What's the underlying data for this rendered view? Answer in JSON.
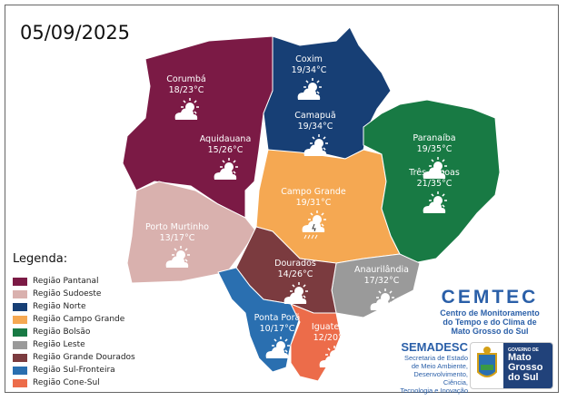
{
  "date": "05/09/2025",
  "regions": [
    {
      "name": "Região Pantanal",
      "color": "#7b1a45"
    },
    {
      "name": "Região Sudoeste",
      "color": "#d9b1ae"
    },
    {
      "name": "Região Norte",
      "color": "#173f75"
    },
    {
      "name": "Região Campo Grande",
      "color": "#f5a852"
    },
    {
      "name": "Região Bolsão",
      "color": "#187a44"
    },
    {
      "name": "Região Leste",
      "color": "#9a9a9a"
    },
    {
      "name": "Região Grande Dourados",
      "color": "#7b3b3f"
    },
    {
      "name": "Região Sul-Fronteira",
      "color": "#2a6fb0"
    },
    {
      "name": "Região Cone-Sul",
      "color": "#ec6c4a"
    }
  ],
  "legend_title": "Legenda:",
  "cities": [
    {
      "name": "Corumbá",
      "temp": "18/23°C",
      "icon": "partly-cloudy-icon"
    },
    {
      "name": "Aquidauana",
      "temp": "15/26°C",
      "icon": "partly-cloudy-icon"
    },
    {
      "name": "Porto Murtinho",
      "temp": "13/17°C",
      "icon": "partly-cloudy-icon"
    },
    {
      "name": "Coxim",
      "temp": "19/34°C",
      "icon": "partly-cloudy-icon"
    },
    {
      "name": "Camapuã",
      "temp": "19/34°C",
      "icon": "partly-cloudy-icon"
    },
    {
      "name": "Paranaíba",
      "temp": "19/35°C",
      "icon": "partly-cloudy-icon"
    },
    {
      "name": "Três Lagoas",
      "temp": "21/35°C",
      "icon": "partly-cloudy-icon"
    },
    {
      "name": "Campo Grande",
      "temp": "19/31°C",
      "icon": "thunderstorm-icon"
    },
    {
      "name": "Dourados",
      "temp": "14/26°C",
      "icon": "partly-cloudy-icon"
    },
    {
      "name": "Anaurilândia",
      "temp": "17/32°C",
      "icon": "partly-cloudy-icon"
    },
    {
      "name": "Ponta Porã",
      "temp": "10/17°C",
      "icon": "partly-cloudy-icon"
    },
    {
      "name": "Iguatemi",
      "temp": "12/20°C",
      "icon": "partly-cloudy-icon"
    }
  ],
  "cemtec": {
    "title": "CEMTEC",
    "subtitle": [
      "Centro de Monitoramento",
      "do Tempo e do Clima de",
      "Mato Grosso do Sul"
    ]
  },
  "semadesc": {
    "title": "SEMADESC",
    "subtitle": [
      "Secretaria de Estado",
      "de Meio Ambiente,",
      "Desenvolvimento, Ciência,",
      "Tecnologia e Inovação"
    ]
  },
  "gov": {
    "line1": "GOVERNO DE",
    "line2": "Mato",
    "line3": "Grosso",
    "line4": "do Sul"
  }
}
